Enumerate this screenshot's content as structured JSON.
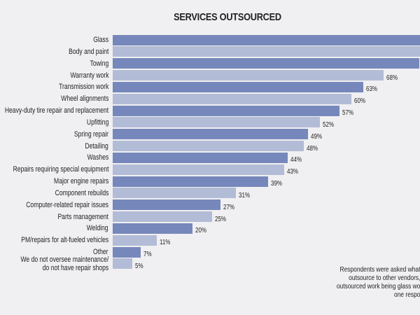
{
  "chart_data": {
    "type": "bar",
    "orientation": "horizontal",
    "title": "SERVICES OUTSOURCED",
    "categories": [
      "Glass",
      "Body and paint",
      "Towing",
      "Warranty work",
      "Transmission work",
      "Wheel alignments",
      "Heavy-duty tire repair and replacement",
      "Upfitting",
      "Spring repair",
      "Detailing",
      "Washes",
      "Repairs requiring special equipment",
      "Major engine repairs",
      "Component rebuilds",
      "Computer-related repair issues",
      "Parts management",
      "Welding",
      "PM/repairs for alt-fueled vehicles",
      "Other",
      "We do not oversee maintenance/\ndo not have repair shops"
    ],
    "values": [
      80,
      79,
      77,
      68,
      63,
      60,
      57,
      52,
      49,
      48,
      44,
      43,
      39,
      31,
      27,
      25,
      20,
      11,
      7,
      5
    ],
    "data_labels": [
      null,
      null,
      null,
      "68%",
      "63%",
      "60%",
      "57%",
      "52%",
      "49%",
      "48%",
      "44%",
      "43%",
      "39%",
      "31%",
      "27%",
      "25%",
      "20%",
      "11%",
      "7%",
      "5%"
    ],
    "unit": "%",
    "colors": [
      "#7688bb",
      "#b3bcd6"
    ],
    "grid": false
  },
  "note_lines": [
    "Respondents were asked what",
    "outsource to other vendors,",
    "outsourced work being glass wo",
    "one respo"
  ]
}
